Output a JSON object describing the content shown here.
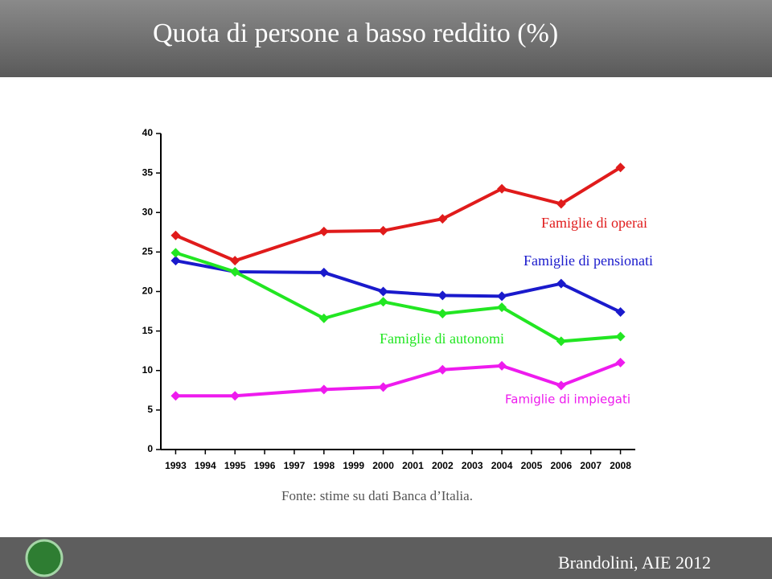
{
  "chart_data": {
    "type": "line",
    "title": "Quota di persone a basso reddito (%)",
    "x": [
      1993,
      1995,
      1998,
      2000,
      2002,
      2004,
      2006,
      2008
    ],
    "xlim": [
      1992.5,
      2008.5
    ],
    "xticks": [
      1993,
      1994,
      1995,
      1996,
      1997,
      1998,
      1999,
      2000,
      2001,
      2002,
      2003,
      2004,
      2005,
      2006,
      2007,
      2008
    ],
    "ylim": [
      0,
      40
    ],
    "yticks": [
      0,
      5,
      10,
      15,
      20,
      25,
      30,
      35,
      40
    ],
    "grid": false,
    "series": [
      {
        "name": "Famiglie di operai",
        "color": "#e01b1b",
        "values": [
          27.1,
          23.9,
          27.6,
          27.7,
          29.2,
          33.0,
          31.1,
          35.7
        ]
      },
      {
        "name": "Famiglie di pensionati",
        "color": "#1a1acc",
        "values": [
          23.9,
          22.5,
          22.4,
          20.0,
          19.5,
          19.4,
          21.0,
          17.4
        ]
      },
      {
        "name": "Famiglie di autonomi",
        "color": "#22e622",
        "values": [
          24.9,
          22.5,
          16.6,
          18.7,
          17.2,
          18.0,
          13.7,
          14.3
        ]
      },
      {
        "name": "Famiglie di impiegati",
        "color": "#ee1bee",
        "values": [
          6.8,
          6.8,
          7.6,
          7.9,
          10.1,
          10.6,
          8.1,
          11.0
        ]
      }
    ],
    "source": "Fonte: stime su dati Banca d’Italia.",
    "footer": "Brandolini, AIE 2012"
  }
}
